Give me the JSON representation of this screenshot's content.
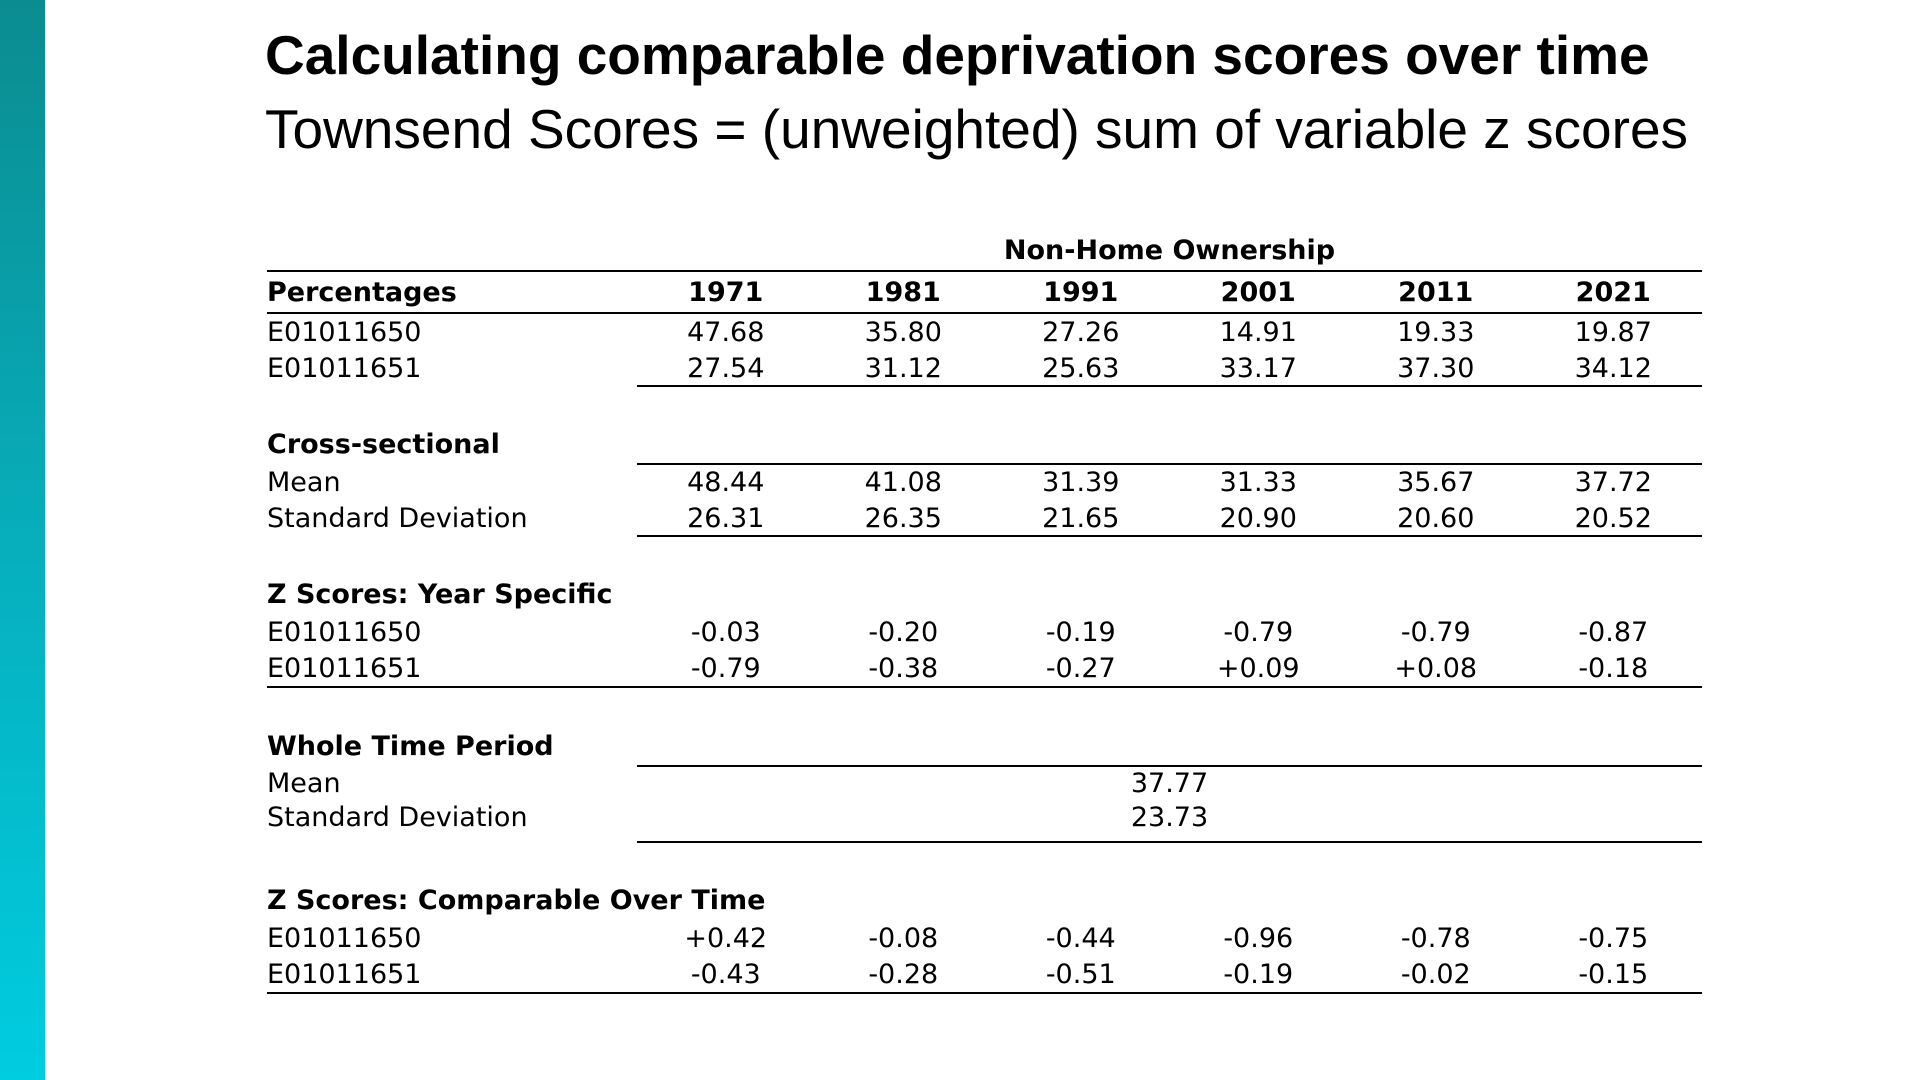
{
  "slide": {
    "title": "Calculating comparable deprivation scores over time",
    "subtitle": "Townsend Scores = (unweighted) sum of variable z scores",
    "accent_gradient": [
      "#0b8c90",
      "#00cde0"
    ]
  },
  "table": {
    "super_header": "Non-Home Ownership",
    "row_header": "Percentages",
    "years": [
      "1971",
      "1981",
      "1991",
      "2001",
      "2011",
      "2021"
    ],
    "percentages": [
      {
        "area": "E01011650",
        "values": [
          "47.68",
          "35.80",
          "27.26",
          "14.91",
          "19.33",
          "19.87"
        ]
      },
      {
        "area": "E01011651",
        "values": [
          "27.54",
          "31.12",
          "25.63",
          "33.17",
          "37.30",
          "34.12"
        ]
      }
    ],
    "cross_sectional": {
      "label": "Cross-sectional",
      "mean_label": "Mean",
      "mean": [
        "48.44",
        "41.08",
        "31.39",
        "31.33",
        "35.67",
        "37.72"
      ],
      "sd_label": "Standard Deviation",
      "sd": [
        "26.31",
        "26.35",
        "21.65",
        "20.90",
        "20.60",
        "20.52"
      ]
    },
    "z_year_specific": {
      "label": "Z Scores: Year Specific",
      "rows": [
        {
          "area": "E01011650",
          "values": [
            "-0.03",
            "-0.20",
            "-0.19",
            "-0.79",
            "-0.79",
            "-0.87"
          ]
        },
        {
          "area": "E01011651",
          "values": [
            "-0.79",
            "-0.38",
            "-0.27",
            "+0.09",
            "+0.08",
            "-0.18"
          ]
        }
      ]
    },
    "whole_time_period": {
      "label": "Whole Time Period",
      "mean_label": "Mean",
      "mean": "37.77",
      "sd_label": "Standard Deviation",
      "sd": "23.73"
    },
    "z_comparable": {
      "label": "Z Scores: Comparable Over Time",
      "rows": [
        {
          "area": "E01011650",
          "values": [
            "+0.42",
            "-0.08",
            "-0.44",
            "-0.96",
            "-0.78",
            "-0.75"
          ]
        },
        {
          "area": "E01011651",
          "values": [
            "-0.43",
            "-0.28",
            "-0.51",
            "-0.19",
            "-0.02",
            "-0.15"
          ]
        }
      ]
    }
  }
}
